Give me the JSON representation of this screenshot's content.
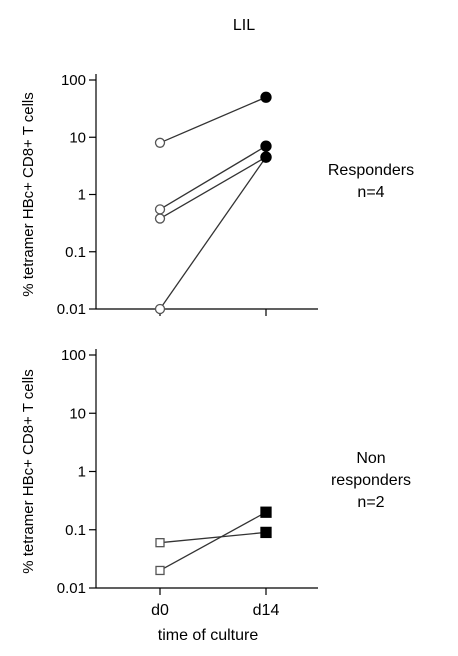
{
  "figure": {
    "title": "LIL",
    "xlabel": "time of culture"
  },
  "chart_data": [
    {
      "type": "line",
      "panel": "top",
      "ylabel": "% tetramer HBc+ CD8+ T cells",
      "yscale": "log",
      "ylim": [
        0.01,
        100
      ],
      "yticks": [
        0.01,
        0.1,
        1,
        10,
        100
      ],
      "ytick_labels": [
        "0.01",
        "0.1",
        "1",
        "10",
        "100"
      ],
      "categories": [
        "d0",
        "d14"
      ],
      "group_label": [
        "Responders",
        "n=4"
      ],
      "marker_start": "open-circle",
      "marker_end": "filled-circle",
      "series": [
        {
          "values": [
            8,
            50
          ]
        },
        {
          "values": [
            0.55,
            7
          ]
        },
        {
          "values": [
            0.38,
            4.5
          ]
        },
        {
          "values": [
            0.01,
            4.5
          ]
        }
      ]
    },
    {
      "type": "line",
      "panel": "bottom",
      "ylabel": "% tetramer HBc+ CD8+ T cells",
      "yscale": "log",
      "ylim": [
        0.01,
        100
      ],
      "yticks": [
        0.01,
        0.1,
        1,
        10,
        100
      ],
      "ytick_labels": [
        "0.01",
        "0.1",
        "1",
        "10",
        "100"
      ],
      "categories": [
        "d0",
        "d14"
      ],
      "xtick_labels": [
        "d0",
        "d14"
      ],
      "group_label": [
        "Non",
        "responders",
        "n=2"
      ],
      "marker_start": "open-square",
      "marker_end": "filled-square",
      "series": [
        {
          "values": [
            0.06,
            0.09
          ]
        },
        {
          "values": [
            0.02,
            0.2
          ]
        }
      ]
    }
  ]
}
